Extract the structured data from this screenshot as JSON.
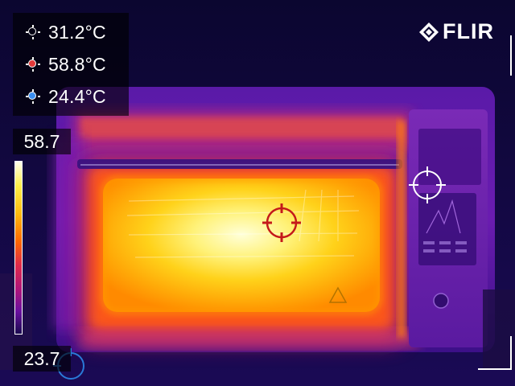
{
  "brand": {
    "logo_text": "FLIR",
    "logo_icon": "flir-diamond-icon"
  },
  "measurements": [
    {
      "icon": "spot-white-icon",
      "marker_color": "#ffffff",
      "value": "31.2°C"
    },
    {
      "icon": "spot-hot-icon",
      "marker_color": "#e23a3a",
      "value": "58.8°C"
    },
    {
      "icon": "spot-cold-icon",
      "marker_color": "#3a8ef0",
      "value": "24.4°C"
    }
  ],
  "scale": {
    "max": "58.7",
    "min": "23.7",
    "palette": "iron"
  },
  "colors": {
    "hot_marker": "#c41a1a",
    "cold_marker": "#2a7ad8",
    "center_marker": "#ffffff",
    "palette_hot": "#ffff88",
    "palette_mid": "#ff6a00",
    "palette_cold": "#1a0a50"
  }
}
